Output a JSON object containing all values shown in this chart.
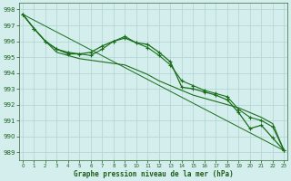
{
  "line1_upper": {
    "x": [
      0,
      1,
      2,
      3,
      4,
      5,
      6,
      7,
      8,
      9,
      10,
      11,
      12,
      13,
      14,
      15,
      16,
      17,
      18,
      19,
      20,
      21,
      22,
      23
    ],
    "y": [
      997.7,
      996.8,
      996.0,
      995.5,
      995.2,
      995.2,
      995.3,
      995.7,
      996.0,
      996.2,
      995.9,
      995.8,
      995.3,
      994.7,
      993.1,
      993.0,
      992.8,
      992.6,
      992.3,
      991.5,
      990.5,
      990.7,
      989.9,
      989.1
    ],
    "color": "#1a6e1a",
    "linewidth": 0.9,
    "marker": "+",
    "markersize": 3.5
  },
  "line2_mid": {
    "x": [
      0,
      1,
      2,
      3,
      4,
      5,
      6,
      7,
      8,
      9,
      10,
      11,
      12,
      13,
      14,
      15,
      16,
      17,
      18,
      19,
      20,
      21,
      22,
      23
    ],
    "y": [
      997.7,
      996.8,
      996.0,
      995.3,
      995.1,
      994.9,
      994.8,
      994.7,
      994.6,
      994.5,
      994.2,
      993.9,
      993.5,
      993.2,
      992.9,
      992.6,
      992.4,
      992.2,
      992.0,
      991.8,
      991.5,
      991.2,
      990.8,
      989.1
    ],
    "color": "#1a6e1a",
    "linewidth": 0.8,
    "marker": null,
    "markersize": 0
  },
  "line3_lower": {
    "x": [
      0,
      1,
      2,
      3,
      4,
      5,
      6,
      7,
      8,
      9,
      10,
      11,
      12,
      13,
      14,
      15,
      16,
      17,
      18,
      19,
      20,
      21,
      22,
      23
    ],
    "y": [
      997.7,
      996.8,
      996.0,
      995.5,
      995.3,
      995.2,
      995.1,
      995.5,
      996.0,
      996.3,
      995.9,
      995.6,
      995.1,
      994.5,
      993.5,
      993.2,
      992.9,
      992.7,
      992.5,
      991.7,
      991.2,
      991.0,
      990.6,
      989.1
    ],
    "color": "#1a6e1a",
    "linewidth": 0.8,
    "marker": "+",
    "markersize": 3.0
  },
  "line4_straight": {
    "x": [
      0,
      23
    ],
    "y": [
      997.7,
      989.1
    ],
    "color": "#1a6e1a",
    "linewidth": 0.7,
    "marker": null,
    "markersize": 0
  },
  "ylim": [
    988.5,
    998.4
  ],
  "yticks": [
    989,
    990,
    991,
    992,
    993,
    994,
    995,
    996,
    997,
    998
  ],
  "xlim": [
    -0.3,
    23.3
  ],
  "xticks": [
    0,
    1,
    2,
    3,
    4,
    5,
    6,
    7,
    8,
    9,
    10,
    11,
    12,
    13,
    14,
    15,
    16,
    17,
    18,
    19,
    20,
    21,
    22,
    23
  ],
  "xlabel": "Graphe pression niveau de la mer (hPa)",
  "bg_color": "#d4eeed",
  "grid_color": "#b0d4d0",
  "axis_color": "#336633",
  "text_color": "#1a5e1a",
  "tick_color": "#1a5e1a"
}
